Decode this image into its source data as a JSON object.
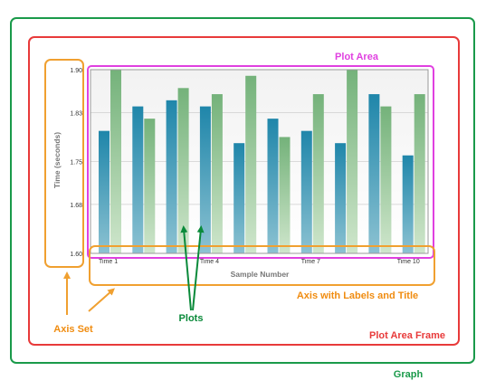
{
  "annotations": {
    "graph": "Graph",
    "plot_area": "Plot Area",
    "plot_area_frame": "Plot Area Frame",
    "axis_set": "Axis Set",
    "axis_labels": "Axis with Labels and Title",
    "plots": "Plots"
  },
  "colors": {
    "graph": "#1a9a4a",
    "plot_area": "#e040e0",
    "plot_area_frame": "#e83a3a",
    "axis": "#f0a030",
    "axis_text": "#f08c10",
    "plots": "#0a8a3a",
    "series_blue": "#2a8fae",
    "series_green": "#7ab67e"
  },
  "chart_data": {
    "type": "bar",
    "xlabel": "Sample Number",
    "ylabel": "Time (seconds)",
    "ylim": [
      1.6,
      1.9
    ],
    "y_ticks": [
      "1.90",
      "1.83",
      "1.75",
      "1.68",
      "1.60"
    ],
    "x_ticks": [
      {
        "index": 0,
        "label": "Time 1"
      },
      {
        "index": 3,
        "label": "Time 4"
      },
      {
        "index": 6,
        "label": "Time 7"
      },
      {
        "index": 9,
        "label": "Time 10"
      }
    ],
    "series": [
      {
        "color": "blue",
        "values": [
          1.8,
          1.84,
          1.85,
          1.84,
          1.78,
          1.82,
          1.8,
          1.78,
          1.86,
          1.76
        ]
      },
      {
        "color": "green",
        "values": [
          1.9,
          1.82,
          1.87,
          1.86,
          1.89,
          1.79,
          1.86,
          1.9,
          1.84,
          1.86
        ]
      }
    ]
  }
}
